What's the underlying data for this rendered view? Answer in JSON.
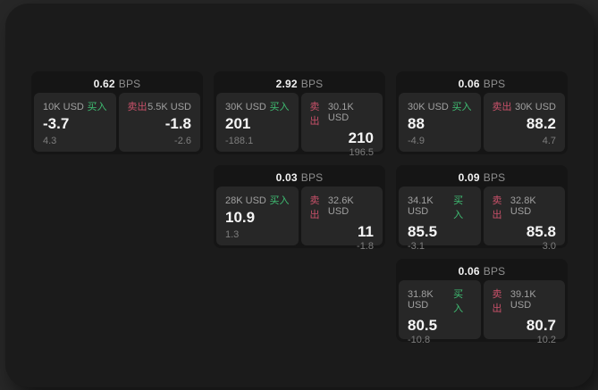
{
  "colors": {
    "page_bg": "#272727",
    "panel_bg": "#1b1b1b",
    "card_bg": "#151515",
    "cell_bg": "#272727",
    "buy": "#3fbe73",
    "sell": "#c9516a",
    "price_text": "#f5f5f5",
    "muted_text": "#8f8f8f"
  },
  "labels": {
    "bps_unit": "BPS",
    "buy": "买入",
    "sell": "卖出"
  },
  "cards": [
    {
      "bps": "0.62",
      "col": "1",
      "row": "1",
      "buy": {
        "size": "10K USD",
        "price": "-3.7",
        "delta": "4.3"
      },
      "sell": {
        "size": "5.5K USD",
        "price": "-1.8",
        "delta": "-2.6"
      }
    },
    {
      "bps": "2.92",
      "col": "2",
      "row": "1",
      "buy": {
        "size": "30K USD",
        "price": "201",
        "delta": "-188.1"
      },
      "sell": {
        "size": "30.1K USD",
        "price": "210",
        "delta": "196.5"
      }
    },
    {
      "bps": "0.06",
      "col": "3",
      "row": "1",
      "buy": {
        "size": "30K USD",
        "price": "88",
        "delta": "-4.9"
      },
      "sell": {
        "size": "30K USD",
        "price": "88.2",
        "delta": "4.7"
      }
    },
    {
      "bps": "0.03",
      "col": "2",
      "row": "2",
      "buy": {
        "size": "28K USD",
        "price": "10.9",
        "delta": "1.3"
      },
      "sell": {
        "size": "32.6K USD",
        "price": "11",
        "delta": "-1.8"
      }
    },
    {
      "bps": "0.09",
      "col": "3",
      "row": "2",
      "buy": {
        "size": "34.1K USD",
        "price": "85.5",
        "delta": "-3.1"
      },
      "sell": {
        "size": "32.8K USD",
        "price": "85.8",
        "delta": "3.0"
      }
    },
    {
      "bps": "0.06",
      "col": "3",
      "row": "3",
      "buy": {
        "size": "31.8K USD",
        "price": "80.5",
        "delta": "-10.8"
      },
      "sell": {
        "size": "39.1K USD",
        "price": "80.7",
        "delta": "10.2"
      }
    }
  ]
}
